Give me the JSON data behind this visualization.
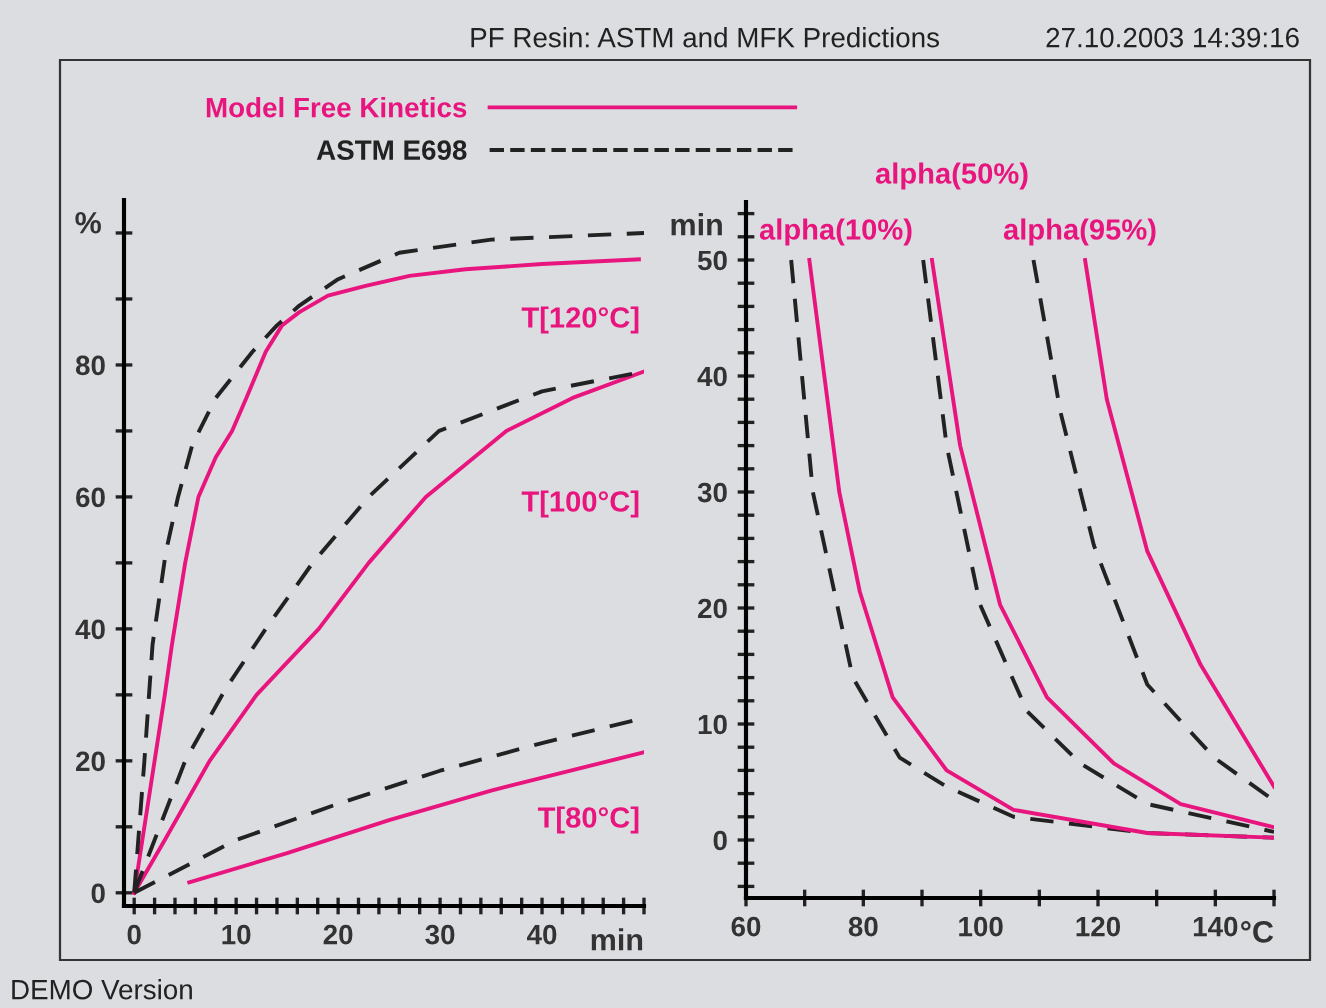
{
  "chart_data": [
    {
      "type": "line",
      "xlabel": "min",
      "ylabel": "%",
      "xlim": [
        -1,
        50
      ],
      "ylim": [
        -2,
        105
      ],
      "xticks": [
        0,
        {
          "value": 2,
          "label": null
        },
        {
          "value": 4,
          "label": null
        },
        {
          "value": 6,
          "label": null
        },
        {
          "value": 8,
          "label": null
        },
        10,
        {
          "value": 12,
          "label": null
        },
        {
          "value": 14,
          "label": null
        },
        {
          "value": 16,
          "label": null
        },
        {
          "value": 18,
          "label": null
        },
        20,
        {
          "value": 22,
          "label": null
        },
        {
          "value": 24,
          "label": null
        },
        {
          "value": 26,
          "label": null
        },
        {
          "value": 28,
          "label": null
        },
        30,
        {
          "value": 32,
          "label": null
        },
        {
          "value": 34,
          "label": null
        },
        {
          "value": 36,
          "label": null
        },
        {
          "value": 38,
          "label": null
        },
        40,
        {
          "value": 42,
          "label": null
        },
        {
          "value": 44,
          "label": null
        },
        {
          "value": 46,
          "label": null
        },
        {
          "value": 48,
          "label": null
        },
        {
          "value": 50,
          "label": null
        }
      ],
      "yticks": [
        0,
        {
          "value": 10,
          "label": null
        },
        20,
        {
          "value": 30,
          "label": null
        },
        40,
        {
          "value": 50,
          "label": null
        },
        60,
        {
          "value": 70,
          "label": null
        },
        80,
        {
          "value": 90,
          "label": null
        },
        {
          "value": 100,
          "label": null
        }
      ],
      "legend": "top left",
      "grid": false,
      "series": [
        {
          "name": "Model Free Kinetics",
          "color": "#e8157f",
          "line_style": "solid",
          "x": [
            0,
            1,
            2,
            3,
            3.7,
            5,
            6.3,
            8,
            9.6,
            11,
            12.9,
            14.5,
            16.2,
            19,
            22.7,
            27,
            32.5,
            40,
            49.5
          ],
          "values": [
            0,
            10,
            20,
            30,
            37.6,
            50,
            60,
            66,
            70,
            75,
            82,
            86,
            88,
            90.5,
            92,
            93.5,
            94.5,
            95.3,
            96
          ]
        },
        {
          "name": "ASTM E698",
          "color": "#222222",
          "line_style": "dashed",
          "x": [
            0,
            1,
            1.8,
            3.1,
            4.3,
            5.7,
            8,
            11.6,
            14,
            16.2,
            20,
            26,
            35,
            50
          ],
          "values": [
            0,
            20,
            37.6,
            51.6,
            60,
            67.9,
            75,
            82,
            86,
            89,
            93,
            97,
            99,
            100
          ]
        },
        {
          "color": "#e8157f",
          "line_style": "solid",
          "x": [
            0,
            3,
            7.4,
            12,
            18.1,
            23,
            28.6,
            36.5,
            43,
            50
          ],
          "values": [
            0,
            8,
            20,
            30,
            40,
            50,
            60,
            70,
            75,
            79
          ]
        },
        {
          "color": "#222222",
          "line_style": "dashed",
          "x": [
            0,
            2,
            5,
            9,
            12.9,
            17.5,
            23,
            29.9,
            40,
            50
          ],
          "values": [
            0,
            8,
            20,
            31,
            40,
            50,
            60,
            70,
            76,
            79
          ]
        },
        {
          "color": "#e8157f",
          "line_style": "solid",
          "x": [
            5.4,
            15,
            25,
            35,
            50
          ],
          "values": [
            1.6,
            6,
            11,
            15.5,
            21.3
          ]
        },
        {
          "color": "#222222",
          "line_style": "dashed",
          "x": [
            0,
            10,
            20,
            30,
            40,
            50
          ],
          "values": [
            0,
            8,
            13.5,
            18.5,
            22.7,
            26.5
          ]
        }
      ],
      "annotations": [
        "T[120°C]",
        "T[100°C]",
        "T[80°C]",
        "PF Resin: ASTM and MFK Predictions",
        "27.10.2003 14:39:16",
        "DEMO Version"
      ]
    },
    {
      "type": "line",
      "xlabel": "°C",
      "ylabel": "min",
      "xlim": [
        60,
        150
      ],
      "ylim": [
        -5,
        55
      ],
      "xticks": [
        60,
        {
          "value": 70,
          "label": null
        },
        80,
        {
          "value": 90,
          "label": null
        },
        100,
        {
          "value": 110,
          "label": null
        },
        120,
        {
          "value": 130,
          "label": null
        },
        140,
        {
          "value": 150,
          "label": null
        }
      ],
      "yticks": [
        {
          "value": -4,
          "label": null
        },
        {
          "value": -2,
          "label": null
        },
        0,
        {
          "value": 2,
          "label": null
        },
        {
          "value": 4,
          "label": null
        },
        {
          "value": 6,
          "label": null
        },
        {
          "value": 8,
          "label": null
        },
        10,
        {
          "value": 12,
          "label": null
        },
        {
          "value": 14,
          "label": null
        },
        {
          "value": 16,
          "label": null
        },
        {
          "value": 18,
          "label": null
        },
        20,
        {
          "value": 22,
          "label": null
        },
        {
          "value": 24,
          "label": null
        },
        {
          "value": 26,
          "label": null
        },
        {
          "value": 28,
          "label": null
        },
        30,
        {
          "value": 32,
          "label": null
        },
        {
          "value": 34,
          "label": null
        },
        {
          "value": 36,
          "label": null
        },
        {
          "value": 38,
          "label": null
        },
        40,
        {
          "value": 42,
          "label": null
        },
        {
          "value": 44,
          "label": null
        },
        {
          "value": 46,
          "label": null
        },
        {
          "value": 48,
          "label": null
        },
        50,
        {
          "value": 52,
          "label": null
        },
        {
          "value": 54,
          "label": null
        }
      ],
      "grid": false,
      "series": [
        {
          "color": "#222222",
          "line_style": "dashed",
          "x": [
            67.7,
            71.4,
            78.2,
            86.2,
            94.2,
            105.6,
            128.4,
            150
          ],
          "values": [
            50,
            30,
            14,
            7.1,
            4.6,
            2,
            0.6,
            0.2
          ]
        },
        {
          "color": "#e8157f",
          "line_style": "solid",
          "x": [
            70.8,
            75.9,
            79.4,
            85,
            94.2,
            105.6,
            128.4,
            150
          ],
          "values": [
            50,
            30,
            21.4,
            12.3,
            6,
            2.6,
            0.6,
            0.2
          ]
        },
        {
          "color": "#222222",
          "line_style": "dashed",
          "x": [
            90.2,
            94.2,
            99.9,
            107.9,
            117,
            128.4,
            150
          ],
          "values": [
            50,
            34,
            20.3,
            11.1,
            6.6,
            3.1,
            0.7
          ]
        },
        {
          "color": "#e8157f",
          "line_style": "solid",
          "x": [
            91.7,
            96.5,
            103.3,
            111.3,
            122.7,
            134.1,
            150
          ],
          "values": [
            50,
            34,
            20.3,
            12.3,
            6.6,
            3.1,
            1.1
          ]
        },
        {
          "color": "#222222",
          "line_style": "dashed",
          "x": [
            109,
            113.6,
            119.3,
            128.4,
            139.8,
            150
          ],
          "values": [
            50,
            36.9,
            25.4,
            13.4,
            7.1,
            3.4
          ]
        },
        {
          "color": "#e8157f",
          "line_style": "solid",
          "x": [
            117.8,
            121.5,
            128.4,
            137.5,
            150
          ],
          "values": [
            50,
            38,
            24.9,
            15.1,
            4.6
          ]
        }
      ],
      "annotations": [
        "alpha(10%)",
        "alpha(50%)",
        "alpha(95%)"
      ]
    }
  ]
}
